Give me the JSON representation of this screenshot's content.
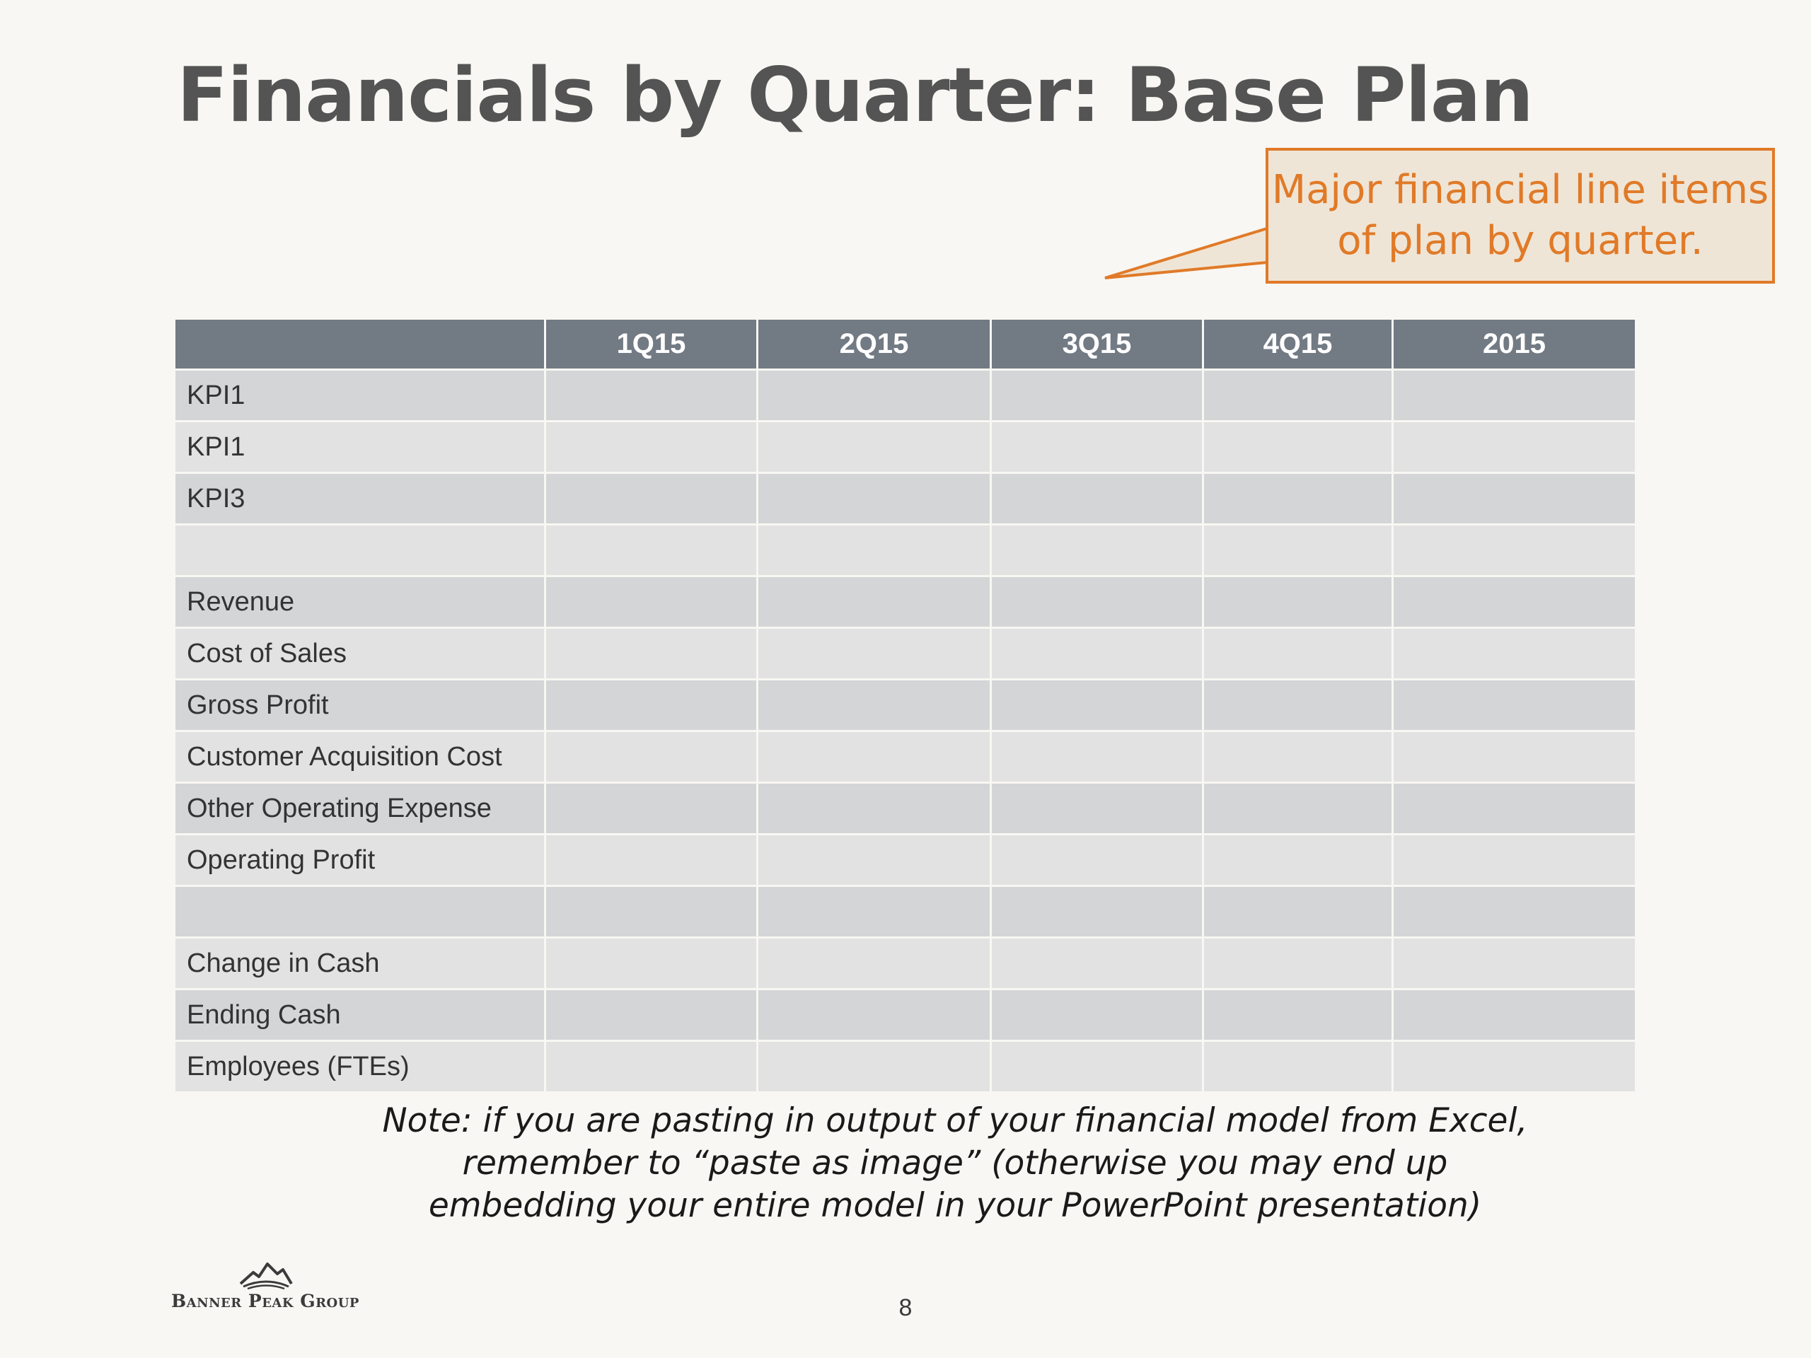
{
  "slide": {
    "title": "Financials by Quarter: Base Plan",
    "page_number": "8"
  },
  "callout": {
    "lines": [
      "Major financial line items",
      "of plan by quarter."
    ],
    "border_color": "#e07a28",
    "fill_color": "#efe5d6"
  },
  "table": {
    "columns": [
      "",
      "1Q15",
      "2Q15",
      "3Q15",
      "4Q15",
      "2015"
    ],
    "rows": [
      {
        "label": "KPI1",
        "values": [
          "",
          "",
          "",
          "",
          ""
        ]
      },
      {
        "label": "KPI1",
        "values": [
          "",
          "",
          "",
          "",
          ""
        ]
      },
      {
        "label": "KPI3",
        "values": [
          "",
          "",
          "",
          "",
          ""
        ]
      },
      {
        "label": "",
        "values": [
          "",
          "",
          "",
          "",
          ""
        ]
      },
      {
        "label": "Revenue",
        "values": [
          "",
          "",
          "",
          "",
          ""
        ]
      },
      {
        "label": "Cost of Sales",
        "values": [
          "",
          "",
          "",
          "",
          ""
        ]
      },
      {
        "label": "Gross Profit",
        "values": [
          "",
          "",
          "",
          "",
          ""
        ]
      },
      {
        "label": "Customer Acquisition Cost",
        "values": [
          "",
          "",
          "",
          "",
          ""
        ]
      },
      {
        "label": "Other Operating Expense",
        "values": [
          "",
          "",
          "",
          "",
          ""
        ]
      },
      {
        "label": "Operating Profit",
        "values": [
          "",
          "",
          "",
          "",
          ""
        ]
      },
      {
        "label": "",
        "values": [
          "",
          "",
          "",
          "",
          ""
        ]
      },
      {
        "label": "Change in Cash",
        "values": [
          "",
          "",
          "",
          "",
          ""
        ]
      },
      {
        "label": "Ending Cash",
        "values": [
          "",
          "",
          "",
          "",
          ""
        ]
      },
      {
        "label": "Employees (FTEs)",
        "values": [
          "",
          "",
          "",
          "",
          ""
        ]
      }
    ],
    "header_color": "#727a84"
  },
  "note": {
    "lines": [
      "Note: if you are pasting in output of your financial model from Excel,",
      "remember to “paste as image” (otherwise you may end up",
      "embedding your entire model in your PowerPoint presentation)"
    ]
  },
  "logo": {
    "icon": "mountain-peak-icon",
    "text": "Banner Peak Group"
  }
}
